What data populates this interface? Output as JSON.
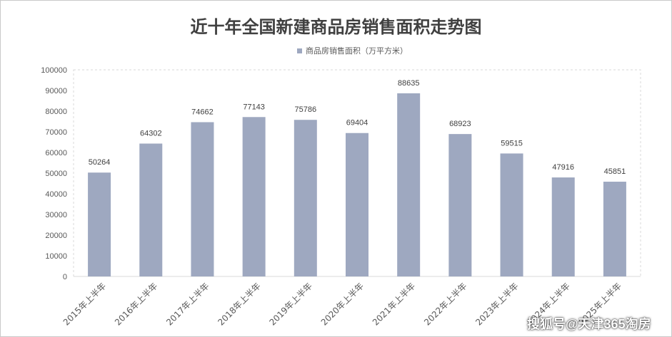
{
  "chart_data": {
    "type": "bar",
    "title": "近十年全国新建商品房销售面积走势图",
    "categories": [
      "2015年上半年",
      "2016年上半年",
      "2017年上半年",
      "2018年上半年",
      "2019年上半年",
      "2020年上半年",
      "2021年上半年",
      "2022年上半年",
      "2023年上半年",
      "2024年上半年",
      "2025年上半年"
    ],
    "series": [
      {
        "name": "商品房销售面积（万平方米）",
        "values": [
          50264,
          64302,
          74662,
          77143,
          75786,
          69404,
          88635,
          68923,
          59515,
          47916,
          45851
        ]
      }
    ],
    "ylim": [
      0,
      100000
    ],
    "yticks": [
      0,
      10000,
      20000,
      30000,
      40000,
      50000,
      60000,
      70000,
      80000,
      90000,
      100000
    ],
    "grid": false,
    "legend_position": "top",
    "colors": {
      "bar": "#9ea8c0",
      "text": "#595959",
      "title": "#404040"
    }
  },
  "watermark": "搜狐号@天津365淘房"
}
